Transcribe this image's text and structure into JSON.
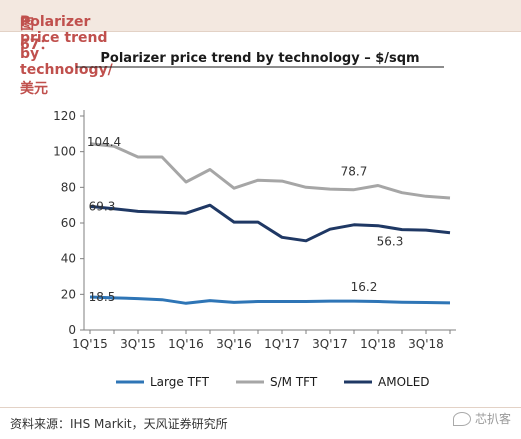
{
  "figure": {
    "label": "图 67：",
    "title": "Polarizer price trend by technology/美元"
  },
  "source": "资料来源：IHS Markit，天风证券研究所",
  "watermark": "芯扒客",
  "chart_data": {
    "type": "line",
    "title": "Polarizer price trend by technology – $/sqm",
    "xlabel": "",
    "ylabel": "",
    "ylim": [
      0,
      120
    ],
    "yticks": [
      0,
      20,
      40,
      60,
      80,
      100,
      120
    ],
    "x": [
      "1Q'15",
      "2Q'15",
      "3Q'15",
      "4Q'15",
      "1Q'16",
      "2Q'16",
      "3Q'16",
      "4Q'16",
      "1Q'17",
      "2Q'17",
      "3Q'17",
      "4Q'17",
      "1Q'18",
      "2Q'18",
      "3Q'18",
      "4Q'18"
    ],
    "xtick_labels": [
      "1Q'15",
      "3Q'15",
      "1Q'16",
      "3Q'16",
      "1Q'17",
      "3Q'17",
      "1Q'18",
      "3Q'18"
    ],
    "grid": false,
    "legend": "bottom",
    "series": [
      {
        "name": "Large TFT",
        "color": "#2e75b6",
        "values": [
          18.5,
          18,
          17.6,
          17,
          15,
          16.5,
          15.5,
          16,
          16,
          16,
          16.2,
          16.2,
          16,
          15.6,
          15.4,
          15.2
        ]
      },
      {
        "name": "S/M TFT",
        "color": "#a6a6a6",
        "values": [
          104.4,
          103,
          97,
          97,
          83,
          90,
          79.5,
          84,
          83.5,
          80,
          79,
          78.7,
          81,
          77,
          75,
          74
        ]
      },
      {
        "name": "AMOLED",
        "color": "#1f3864",
        "values": [
          69.3,
          68,
          66.5,
          66,
          65.5,
          70,
          60.5,
          60.5,
          52,
          50,
          56.5,
          59,
          58.5,
          56.3,
          56,
          54.5
        ]
      }
    ],
    "annotations": [
      {
        "series": "S/M TFT",
        "index": 0,
        "text": "104.4"
      },
      {
        "series": "S/M TFT",
        "index": 11,
        "text": "78.7"
      },
      {
        "series": "AMOLED",
        "index": 0,
        "text": "69.3"
      },
      {
        "series": "AMOLED",
        "index": 13,
        "text": "56.3"
      },
      {
        "series": "Large TFT",
        "index": 0,
        "text": "18.5"
      },
      {
        "series": "Large TFT",
        "index": 11,
        "text": "16.2"
      }
    ]
  }
}
